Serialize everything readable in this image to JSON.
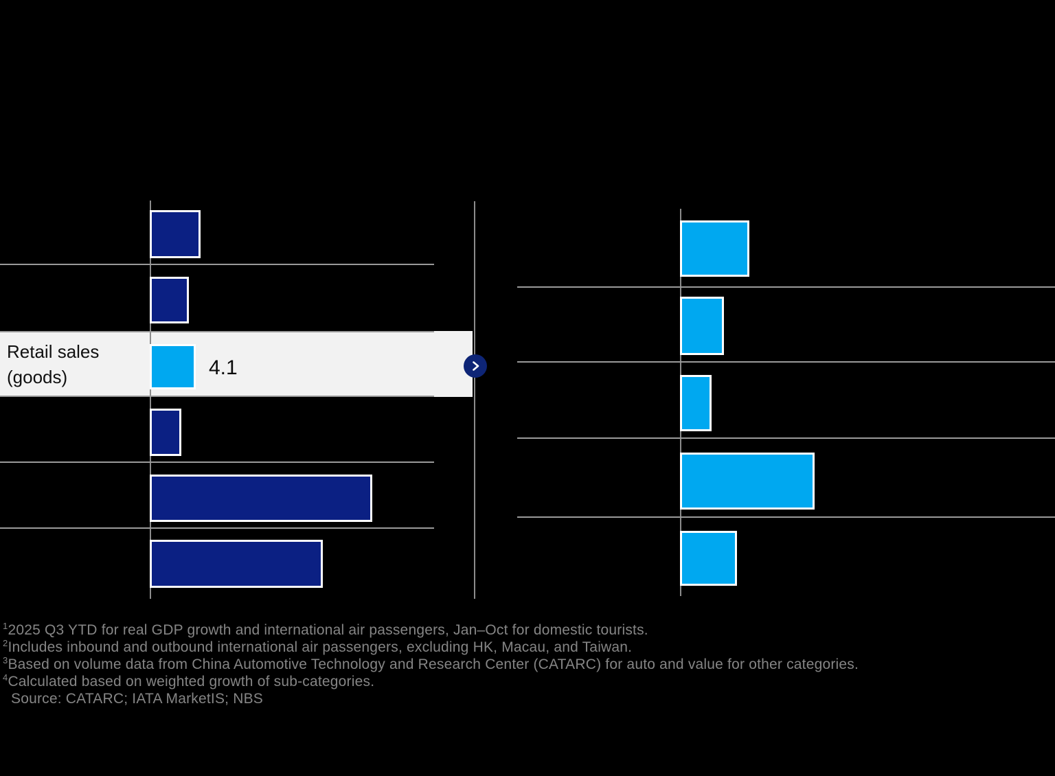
{
  "colors": {
    "background": "#000000",
    "navy_bar": "#0b2083",
    "cyan_bar": "#00a8f0",
    "bar_border": "#ffffff",
    "highlight_bg": "#f2f2f2",
    "axis_line": "#8c8c8c",
    "separator_line": "#9a9a9a",
    "panel_divider": "#8c8c8c",
    "expand_button_bg": "#0e2576",
    "expand_button_chevron": "#ffffff",
    "highlight_text": "#111111",
    "footnote_text": "#858585"
  },
  "highlight": {
    "label_line1": "Retail sales",
    "label_line2": "(goods)",
    "value_label": "4.1"
  },
  "chart_data": [
    {
      "type": "bar",
      "orientation": "horizontal",
      "panel": "left",
      "title": "",
      "categories": [
        "",
        "",
        "Retail sales (goods)",
        "",
        "",
        ""
      ],
      "values": [
        4.5,
        3.5,
        4.1,
        2.8,
        19.8,
        15.4
      ],
      "value_labels_visible": [
        "",
        "",
        "4.1",
        "",
        "",
        ""
      ],
      "highlighted_index": 2,
      "bar_color": "#0b2083",
      "highlighted_bar_color": "#00a8f0",
      "axis_labels_visible": false,
      "gridlines": "horizontal row separators",
      "legend": "none"
    },
    {
      "type": "bar",
      "orientation": "horizontal",
      "panel": "right",
      "title": "",
      "categories": [
        "",
        "",
        "",
        "",
        ""
      ],
      "values": [
        6.2,
        3.9,
        2.8,
        12.0,
        5.1
      ],
      "value_labels_visible": [
        "",
        "",
        "",
        "",
        ""
      ],
      "highlighted_index": null,
      "bar_color": "#00a8f0",
      "axis_labels_visible": false,
      "gridlines": "horizontal row separators",
      "legend": "none"
    }
  ],
  "footnotes": [
    {
      "sup": "1",
      "text": "2025 Q3 YTD for real GDP growth and international air passengers, Jan–Oct for domestic tourists."
    },
    {
      "sup": "2",
      "text": "Includes inbound and outbound international air passengers, excluding HK, Macau, and Taiwan."
    },
    {
      "sup": "3",
      "text": "Based on volume data from China Automotive Technology and Research Center (CATARC) for auto and value for other categories."
    },
    {
      "sup": "4",
      "text": "Calculated based on weighted growth of sub-categories."
    }
  ],
  "source": "Source: CATARC; IATA MarketIS; NBS"
}
